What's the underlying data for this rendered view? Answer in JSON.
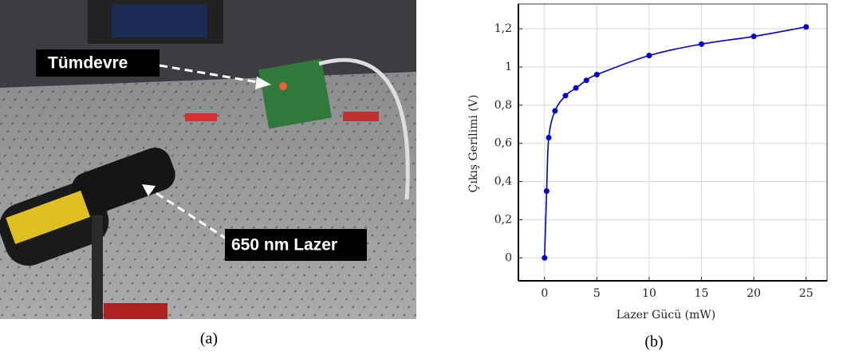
{
  "photo": {
    "labels": [
      "Tümdevre",
      "650 nm Lazer"
    ]
  },
  "captions": [
    "(a)",
    "(b)"
  ],
  "chart_data": {
    "type": "line",
    "x_label": "Lazer Gücü (mW)",
    "y_label": "Çıkış Gerilimi (V)",
    "x": [
      0,
      0.2,
      0.4,
      1,
      2,
      3,
      4,
      5,
      10,
      15,
      20,
      25
    ],
    "values": [
      0,
      0.35,
      0.63,
      0.77,
      0.85,
      0.89,
      0.93,
      0.96,
      1.06,
      1.12,
      1.16,
      1.21
    ],
    "color": "#0000cc",
    "xlim": [
      -2.5,
      27
    ],
    "xticks": [
      0,
      5,
      10,
      15,
      20,
      25
    ],
    "ylim": [
      -0.12,
      1.33
    ],
    "yticks": [
      0,
      {
        "value": 0.2,
        "label": "0,2"
      },
      {
        "value": 0.4,
        "label": "0,4"
      },
      {
        "value": 0.6,
        "label": "0,6"
      },
      {
        "value": 0.8,
        "label": "0,8"
      },
      1,
      {
        "value": 1.2,
        "label": "1,2"
      }
    ],
    "grid": true
  }
}
